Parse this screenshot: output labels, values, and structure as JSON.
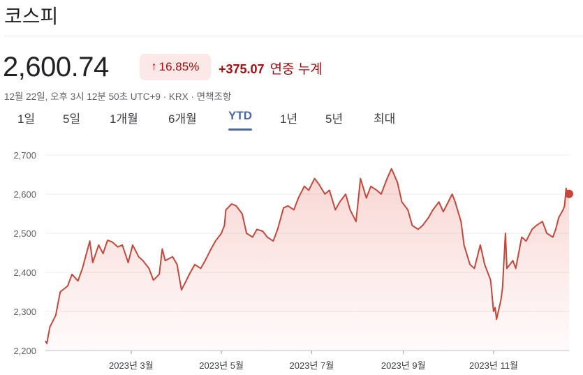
{
  "header": {
    "title": "코스피"
  },
  "quote": {
    "price": "2,600.74",
    "change_percent": "16.85%",
    "change_arrow": "↑",
    "change_abs": "+375.07",
    "change_label": "연중 누계",
    "meta": "12월 22일, 오후 3시 12분 50초 UTC+9 · KRX · 면책조항"
  },
  "tabs": [
    {
      "label": "1일"
    },
    {
      "label": "5일"
    },
    {
      "label": "1개월"
    },
    {
      "label": "6개월"
    },
    {
      "label": "YTD",
      "active": true
    },
    {
      "label": "1년"
    },
    {
      "label": "5년"
    },
    {
      "label": "최대"
    }
  ],
  "colors": {
    "line": "#c5473a",
    "badge_bg": "#fce8e6",
    "negative_text": "#a50e0e",
    "active_tab": "#4a67a8"
  },
  "chart_data": {
    "type": "area",
    "ylim": [
      2200,
      2700
    ],
    "yticks": [
      2200,
      2300,
      2400,
      2500,
      2600,
      2700
    ],
    "ytick_labels": [
      "2,200",
      "2,300",
      "2,400",
      "2,500",
      "2,600",
      "2,700"
    ],
    "xlim": [
      "2023-01-02",
      "2023-12-22"
    ],
    "xticks": [
      {
        "date": "2023-03-01",
        "label": "2023년 3월"
      },
      {
        "date": "2023-05-01",
        "label": "2023년 5월"
      },
      {
        "date": "2023-07-01",
        "label": "2023년 7월"
      },
      {
        "date": "2023-09-01",
        "label": "2023년 9월"
      },
      {
        "date": "2023-11-01",
        "label": "2023년 11월"
      }
    ],
    "series": [
      {
        "values": [
          [
            "2023-01-02",
            2225
          ],
          [
            "2023-01-03",
            2218
          ],
          [
            "2023-01-05",
            2260
          ],
          [
            "2023-01-09",
            2290
          ],
          [
            "2023-01-12",
            2350
          ],
          [
            "2023-01-17",
            2365
          ],
          [
            "2023-01-20",
            2395
          ],
          [
            "2023-01-24",
            2378
          ],
          [
            "2023-01-27",
            2410
          ],
          [
            "2023-02-01",
            2480
          ],
          [
            "2023-02-03",
            2425
          ],
          [
            "2023-02-07",
            2470
          ],
          [
            "2023-02-10",
            2448
          ],
          [
            "2023-02-13",
            2482
          ],
          [
            "2023-02-16",
            2478
          ],
          [
            "2023-02-20",
            2465
          ],
          [
            "2023-02-23",
            2470
          ],
          [
            "2023-02-27",
            2425
          ],
          [
            "2023-03-02",
            2470
          ],
          [
            "2023-03-06",
            2440
          ],
          [
            "2023-03-09",
            2430
          ],
          [
            "2023-03-13",
            2410
          ],
          [
            "2023-03-16",
            2380
          ],
          [
            "2023-03-20",
            2395
          ],
          [
            "2023-03-22",
            2460
          ],
          [
            "2023-03-24",
            2430
          ],
          [
            "2023-03-29",
            2440
          ],
          [
            "2023-04-01",
            2420
          ],
          [
            "2023-04-04",
            2355
          ],
          [
            "2023-04-06",
            2370
          ],
          [
            "2023-04-10",
            2400
          ],
          [
            "2023-04-13",
            2420
          ],
          [
            "2023-04-17",
            2410
          ],
          [
            "2023-04-20",
            2430
          ],
          [
            "2023-04-24",
            2460
          ],
          [
            "2023-04-27",
            2480
          ],
          [
            "2023-05-01",
            2500
          ],
          [
            "2023-05-03",
            2520
          ],
          [
            "2023-05-04",
            2560
          ],
          [
            "2023-05-08",
            2575
          ],
          [
            "2023-05-11",
            2570
          ],
          [
            "2023-05-15",
            2550
          ],
          [
            "2023-05-18",
            2500
          ],
          [
            "2023-05-22",
            2490
          ],
          [
            "2023-05-25",
            2510
          ],
          [
            "2023-05-29",
            2505
          ],
          [
            "2023-06-01",
            2490
          ],
          [
            "2023-06-05",
            2480
          ],
          [
            "2023-06-08",
            2510
          ],
          [
            "2023-06-12",
            2565
          ],
          [
            "2023-06-15",
            2570
          ],
          [
            "2023-06-19",
            2560
          ],
          [
            "2023-06-22",
            2590
          ],
          [
            "2023-06-26",
            2620
          ],
          [
            "2023-06-29",
            2610
          ],
          [
            "2023-07-03",
            2640
          ],
          [
            "2023-07-06",
            2625
          ],
          [
            "2023-07-10",
            2600
          ],
          [
            "2023-07-13",
            2610
          ],
          [
            "2023-07-17",
            2560
          ],
          [
            "2023-07-20",
            2580
          ],
          [
            "2023-07-24",
            2600
          ],
          [
            "2023-07-27",
            2560
          ],
          [
            "2023-07-31",
            2530
          ],
          [
            "2023-08-03",
            2640
          ],
          [
            "2023-08-07",
            2590
          ],
          [
            "2023-08-10",
            2620
          ],
          [
            "2023-08-14",
            2610
          ],
          [
            "2023-08-17",
            2600
          ],
          [
            "2023-08-21",
            2640
          ],
          [
            "2023-08-24",
            2665
          ],
          [
            "2023-08-28",
            2630
          ],
          [
            "2023-08-31",
            2580
          ],
          [
            "2023-09-04",
            2560
          ],
          [
            "2023-09-07",
            2520
          ],
          [
            "2023-09-11",
            2510
          ],
          [
            "2023-09-14",
            2520
          ],
          [
            "2023-09-18",
            2540
          ],
          [
            "2023-09-21",
            2560
          ],
          [
            "2023-09-25",
            2580
          ],
          [
            "2023-09-28",
            2555
          ],
          [
            "2023-10-04",
            2600
          ],
          [
            "2023-10-06",
            2580
          ],
          [
            "2023-10-10",
            2530
          ],
          [
            "2023-10-12",
            2470
          ],
          [
            "2023-10-16",
            2420
          ],
          [
            "2023-10-19",
            2410
          ],
          [
            "2023-10-23",
            2470
          ],
          [
            "2023-10-26",
            2420
          ],
          [
            "2023-10-30",
            2380
          ],
          [
            "2023-11-01",
            2300
          ],
          [
            "2023-11-02",
            2310
          ],
          [
            "2023-11-03",
            2280
          ],
          [
            "2023-11-06",
            2330
          ],
          [
            "2023-11-07",
            2360
          ],
          [
            "2023-11-09",
            2500
          ],
          [
            "2023-11-10",
            2410
          ],
          [
            "2023-11-14",
            2430
          ],
          [
            "2023-11-16",
            2410
          ],
          [
            "2023-11-20",
            2490
          ],
          [
            "2023-11-23",
            2480
          ],
          [
            "2023-11-27",
            2510
          ],
          [
            "2023-11-30",
            2520
          ],
          [
            "2023-12-04",
            2530
          ],
          [
            "2023-12-07",
            2500
          ],
          [
            "2023-12-11",
            2490
          ],
          [
            "2023-12-13",
            2510
          ],
          [
            "2023-12-15",
            2540
          ],
          [
            "2023-12-18",
            2560
          ],
          [
            "2023-12-19",
            2570
          ],
          [
            "2023-12-20",
            2615
          ],
          [
            "2023-12-21",
            2600
          ],
          [
            "2023-12-22",
            2600.74
          ]
        ]
      }
    ]
  }
}
